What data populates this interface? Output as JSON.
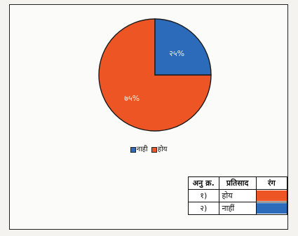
{
  "chart_data": {
    "type": "pie",
    "title": "",
    "slices": [
      {
        "label": "होय",
        "value": 75,
        "display": "७५%",
        "color": "#ee5524"
      },
      {
        "label": "नाही",
        "value": 25,
        "display": "२५%",
        "color": "#2c6bb9"
      }
    ],
    "legend": {
      "placement": "bottom",
      "entries": [
        {
          "label": "नाही",
          "color": "#2c6bb9"
        },
        {
          "label": "होय",
          "color": "#ee5524"
        }
      ]
    }
  },
  "key_table": {
    "headers": [
      "अनु क्र.",
      "प्रतिसाद",
      "रंग"
    ],
    "rows": [
      {
        "num": "१)",
        "response": "होय",
        "color": "#ee5524"
      },
      {
        "num": "२)",
        "response": "नाहीं",
        "color": "#2c6bb9"
      }
    ]
  }
}
